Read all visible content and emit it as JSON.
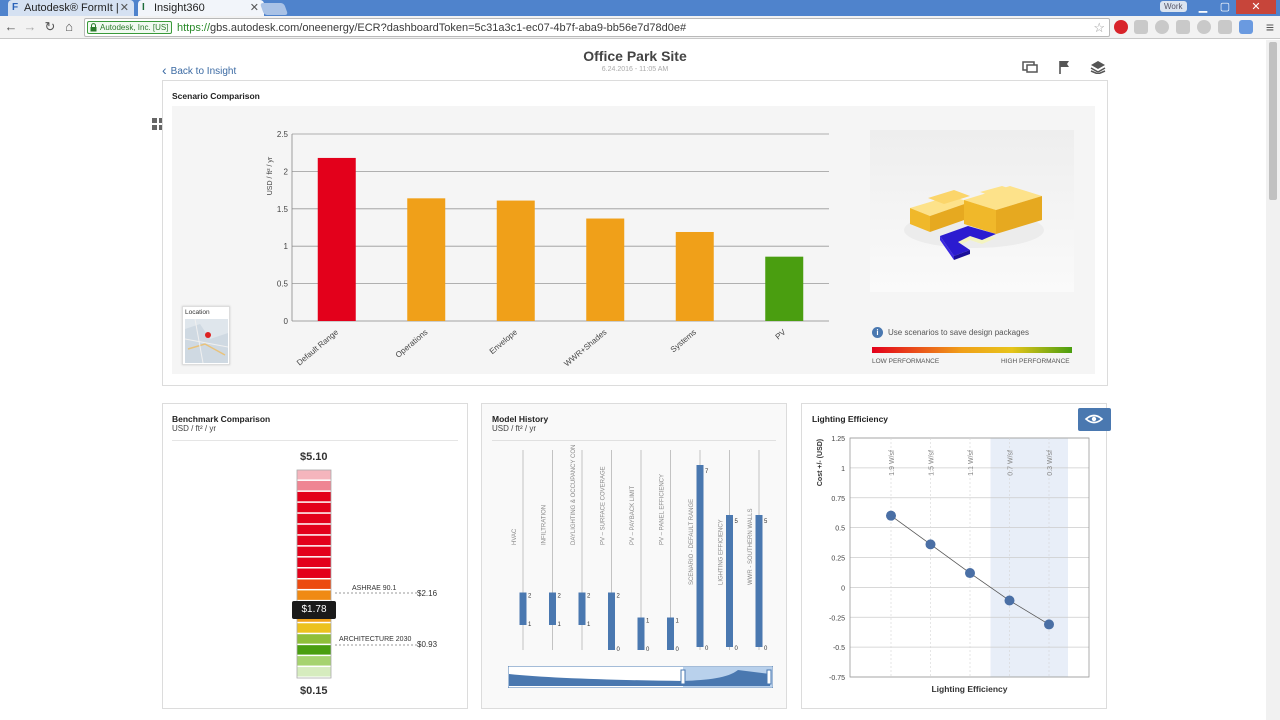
{
  "browser": {
    "tabs": [
      {
        "favicon": "F",
        "title": "Autodesk® FormIt |",
        "active": false
      },
      {
        "favicon": "I",
        "title": "Insight360",
        "active": true
      }
    ],
    "user_badge": "Work",
    "ev_label": "Autodesk, Inc. [US]",
    "url_scheme": "https://",
    "url_rest": "gbs.autodesk.com/oneenergy/ECR?dashboardToken=5c31a3c1-ec07-4b7f-aba9-bb56e7d78d0e#"
  },
  "header": {
    "back_label": "Back to Insight",
    "title": "Office Park Site",
    "date": "6.24.2016 - 11:05 AM"
  },
  "scenario": {
    "title": "Scenario Comparison",
    "location_label": "Location",
    "info_text": "Use scenarios to save design packages",
    "low_label": "LOW PERFORMANCE",
    "high_label": "HIGH PERFORMANCE"
  },
  "benchmark": {
    "title": "Benchmark Comparison",
    "unit": "USD / ft² / yr",
    "max": "$5.10",
    "min": "$0.15",
    "current": "$1.78",
    "ashrae_label": "ASHRAE 90.1",
    "ashrae_value": "$2.16",
    "arch_label": "ARCHITECTURE 2030",
    "arch_value": "$0.93"
  },
  "history": {
    "title": "Model History",
    "unit": "USD / ft² / yr",
    "columns": [
      {
        "label": "HVAC",
        "hi": 2,
        "lo": 1,
        "top": 2,
        "bottom": 1,
        "tall": false
      },
      {
        "label": "INFILTRATION",
        "hi": 2,
        "lo": 1,
        "top": 2,
        "bottom": 1,
        "tall": false
      },
      {
        "label": "DAYLIGHTING & OCCUPANCY CONTROLS",
        "hi": 2,
        "lo": 1,
        "top": 2,
        "bottom": 1,
        "tall": false
      },
      {
        "label": "PV – SURFACE COVERAGE",
        "hi": 2,
        "lo": 0,
        "top": 2,
        "bottom": 0,
        "tall": false
      },
      {
        "label": "PV – PAYBACK LIMIT",
        "hi": 1,
        "lo": 0,
        "top": 1,
        "bottom": 0,
        "tall": false
      },
      {
        "label": "PV – PANEL EFFICIENCY",
        "hi": 1,
        "lo": 0,
        "top": 1,
        "bottom": 0,
        "tall": false
      },
      {
        "label": "SCENARIO - DEFAULT RANGE",
        "hi": 7,
        "lo": 0,
        "top": 7,
        "bottom": 0,
        "tall": true
      },
      {
        "label": "LIGHTING EFFICIENCY",
        "hi": 5,
        "lo": 0,
        "top": 5,
        "bottom": 0,
        "tall": true
      },
      {
        "label": "WWR - SOUTHERN WALLS",
        "hi": 5,
        "lo": 0,
        "top": 5,
        "bottom": 0,
        "tall": true
      }
    ]
  },
  "lighting": {
    "title": "Lighting Efficiency",
    "xlabel": "Lighting Efficiency"
  },
  "colors": {
    "red": "#e3001b",
    "orange": "#f0a019",
    "green": "#4a9e10",
    "accent": "#4a78b0"
  },
  "chart_data": [
    {
      "type": "bar",
      "title": "",
      "ylabel": "USD / ft² / yr",
      "ylim": [
        0,
        2.5
      ],
      "yticks": [
        "2.5",
        "2",
        "1.5",
        "1",
        "0.5",
        "0"
      ],
      "categories": [
        "Default Range",
        "Operations",
        "Envelope",
        "WWR+Shades",
        "Systems",
        "PV"
      ],
      "values": [
        2.18,
        1.64,
        1.61,
        1.37,
        1.19,
        0.86
      ],
      "colors": [
        "#e3001b",
        "#f0a019",
        "#f0a019",
        "#f0a019",
        "#f0a019",
        "#4a9e10"
      ]
    },
    {
      "type": "line",
      "title": "Lighting Efficiency",
      "xlabel": "Lighting Efficiency",
      "ylabel": "Cost +/- (USD)",
      "ylim": [
        -0.75,
        1.25
      ],
      "yticks": [
        "1.25",
        "1",
        "0.75",
        "0.5",
        "0.25",
        "0",
        "-0.25",
        "-0.5",
        "-0.75"
      ],
      "categories": [
        "1.9 W/sf",
        "1.5 W/sf",
        "1.1 W/sf",
        "0.7 W/sf",
        "0.3 W/sf"
      ],
      "values": [
        0.6,
        0.36,
        0.12,
        -0.11,
        -0.31
      ],
      "highlight_from": "0.7 W/sf"
    }
  ]
}
